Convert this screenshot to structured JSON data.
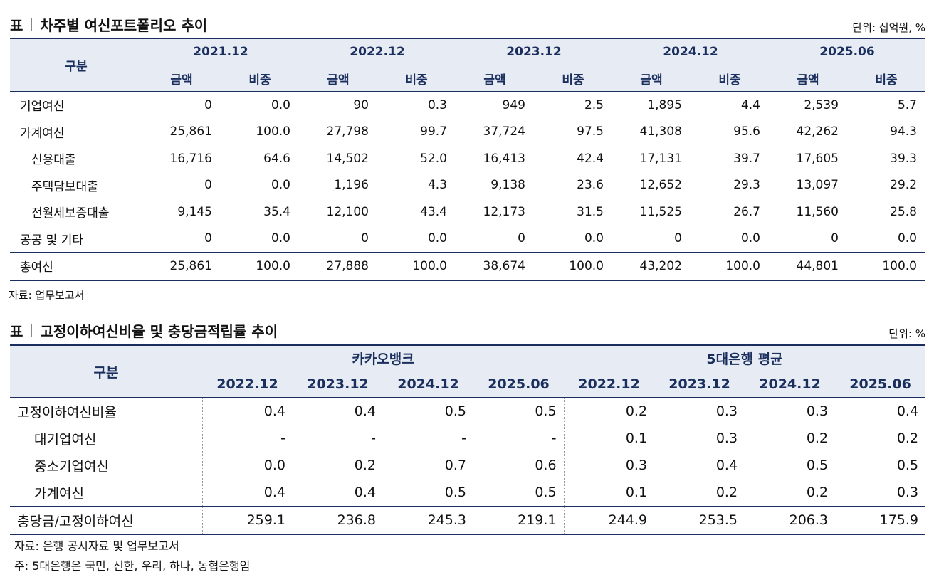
{
  "table1": {
    "tag": "표",
    "title": "차주별 여신포트폴리오 추이",
    "unit": "단위: 십억원, %",
    "header": {
      "category": "구분",
      "periods": [
        "2021.12",
        "2022.12",
        "2023.12",
        "2024.12",
        "2025.06"
      ],
      "amount": "금액",
      "share": "비중"
    },
    "rows": [
      {
        "label": "기업여신",
        "values": [
          "0",
          "0.0",
          "90",
          "0.3",
          "949",
          "2.5",
          "1,895",
          "4.4",
          "2,539",
          "5.7"
        ]
      },
      {
        "label": "가계여신",
        "values": [
          "25,861",
          "100.0",
          "27,798",
          "99.7",
          "37,724",
          "97.5",
          "41,308",
          "95.6",
          "42,262",
          "94.3"
        ]
      },
      {
        "label": "신용대출",
        "values": [
          "16,716",
          "64.6",
          "14,502",
          "52.0",
          "16,413",
          "42.4",
          "17,131",
          "39.7",
          "17,605",
          "39.3"
        ]
      },
      {
        "label": "주택담보대출",
        "values": [
          "0",
          "0.0",
          "1,196",
          "4.3",
          "9,138",
          "23.6",
          "12,652",
          "29.3",
          "13,097",
          "29.2"
        ]
      },
      {
        "label": "전월세보증대출",
        "values": [
          "9,145",
          "35.4",
          "12,100",
          "43.4",
          "12,173",
          "31.5",
          "11,525",
          "26.7",
          "11,560",
          "25.8"
        ]
      },
      {
        "label": "공공 및 기타",
        "values": [
          "0",
          "0.0",
          "0",
          "0.0",
          "0",
          "0.0",
          "0",
          "0.0",
          "0",
          "0.0"
        ]
      },
      {
        "label": "총여신",
        "values": [
          "25,861",
          "100.0",
          "27,888",
          "100.0",
          "38,674",
          "100.0",
          "43,202",
          "100.0",
          "44,801",
          "100.0"
        ]
      }
    ],
    "source": "자료: 업무보고서"
  },
  "table2": {
    "tag": "표",
    "title": "고정이하여신비율 및 충당금적립률 추이",
    "unit": "단위: %",
    "header": {
      "category": "구분",
      "groups": [
        "카카오뱅크",
        "5대은행 평균"
      ],
      "periods": [
        "2022.12",
        "2023.12",
        "2024.12",
        "2025.06",
        "2022.12",
        "2023.12",
        "2024.12",
        "2025.06"
      ]
    },
    "rows": [
      {
        "label": "고정이하여신비율",
        "values": [
          "0.4",
          "0.4",
          "0.5",
          "0.5",
          "0.2",
          "0.3",
          "0.3",
          "0.4"
        ]
      },
      {
        "label": "대기업여신",
        "values": [
          "-",
          "-",
          "-",
          "-",
          "0.1",
          "0.3",
          "0.2",
          "0.2"
        ]
      },
      {
        "label": "중소기업여신",
        "values": [
          "0.0",
          "0.2",
          "0.7",
          "0.6",
          "0.3",
          "0.4",
          "0.5",
          "0.5"
        ]
      },
      {
        "label": "가계여신",
        "values": [
          "0.4",
          "0.4",
          "0.5",
          "0.5",
          "0.1",
          "0.2",
          "0.2",
          "0.3"
        ]
      },
      {
        "label": "충당금/고정이하여신",
        "values": [
          "259.1",
          "236.8",
          "245.3",
          "219.1",
          "244.9",
          "253.5",
          "206.3",
          "175.9"
        ]
      }
    ],
    "source": "자료: 은행 공시자료 및 업무보고서",
    "footnote": "주: 5대은행은 국민, 신한, 우리, 하나, 농협은행임"
  }
}
